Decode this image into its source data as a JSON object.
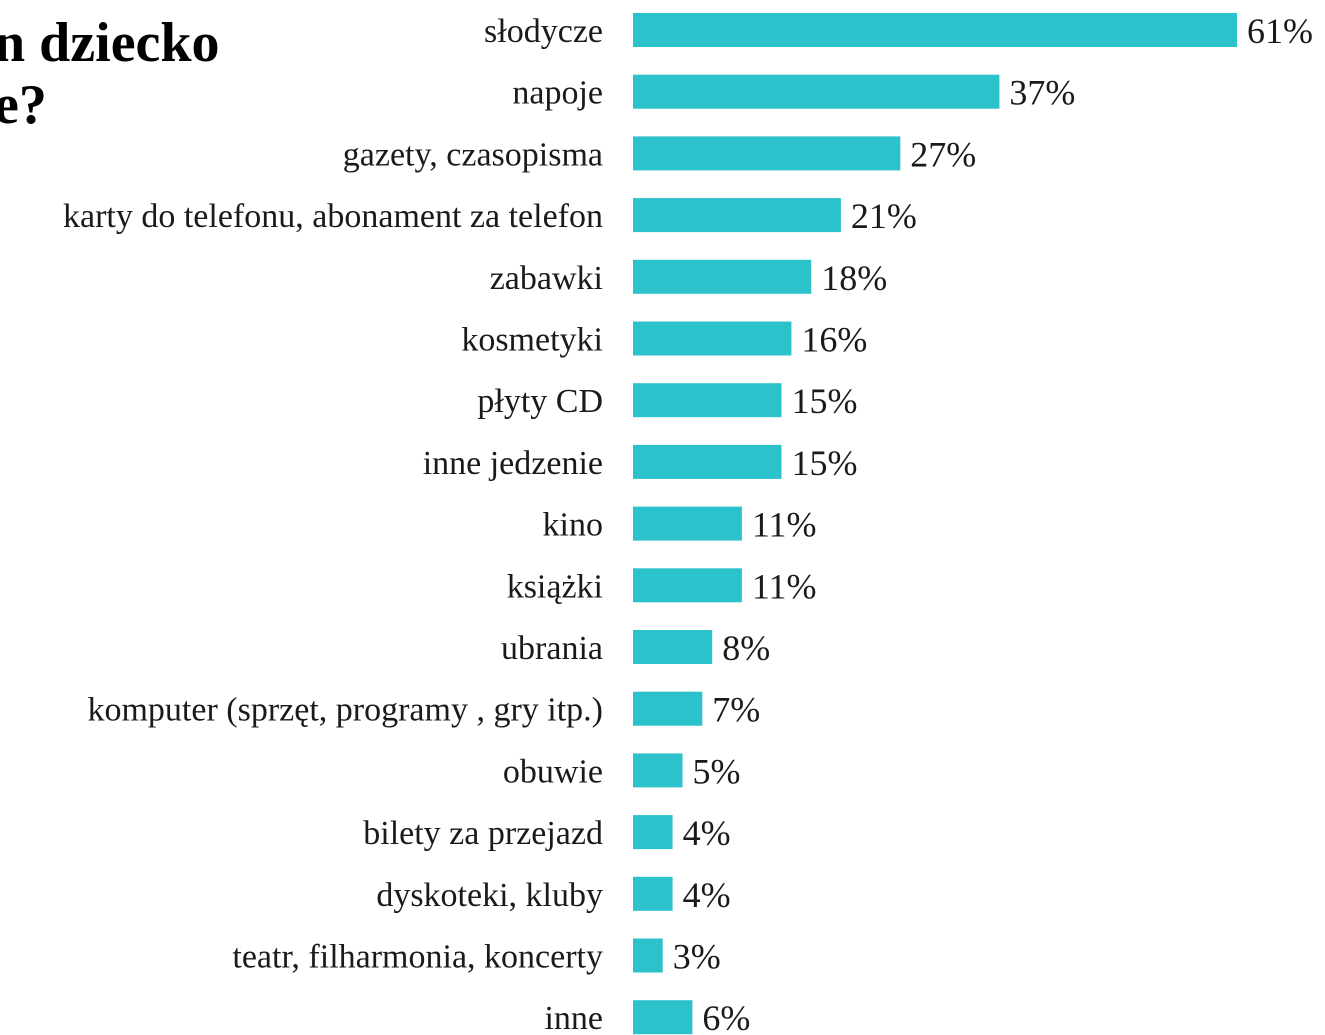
{
  "title_fragment": {
    "line1": "n dziecko",
    "line2": "e?"
  },
  "colors": {
    "bar": "#2bc2cc",
    "text": "#1a1a1a",
    "background": "#ffffff"
  },
  "chart_data": {
    "type": "bar",
    "orientation": "horizontal",
    "title": "",
    "xlabel": "",
    "ylabel": "",
    "categories": [
      "słodycze",
      "napoje",
      "gazety, czasopisma",
      "karty do telefonu, abonament za telefon",
      "zabawki",
      "kosmetyki",
      "płyty CD",
      "inne jedzenie",
      "kino",
      "książki",
      "ubrania",
      "komputer (sprzęt, programy , gry itp.)",
      "obuwie",
      "bilety za przejazd",
      "dyskoteki, kluby",
      "teatr, filharmonia, koncerty",
      "inne"
    ],
    "values": [
      61,
      37,
      27,
      21,
      18,
      16,
      15,
      15,
      11,
      11,
      8,
      7,
      5,
      4,
      4,
      3,
      6
    ],
    "value_labels": [
      "61%",
      "37%",
      "27%",
      "21%",
      "18%",
      "16%",
      "15%",
      "15%",
      "11%",
      "11%",
      "8%",
      "7%",
      "5%",
      "4%",
      "4%",
      "3%",
      "6%"
    ],
    "value_unit": "%",
    "grid": false,
    "legend": "none"
  }
}
